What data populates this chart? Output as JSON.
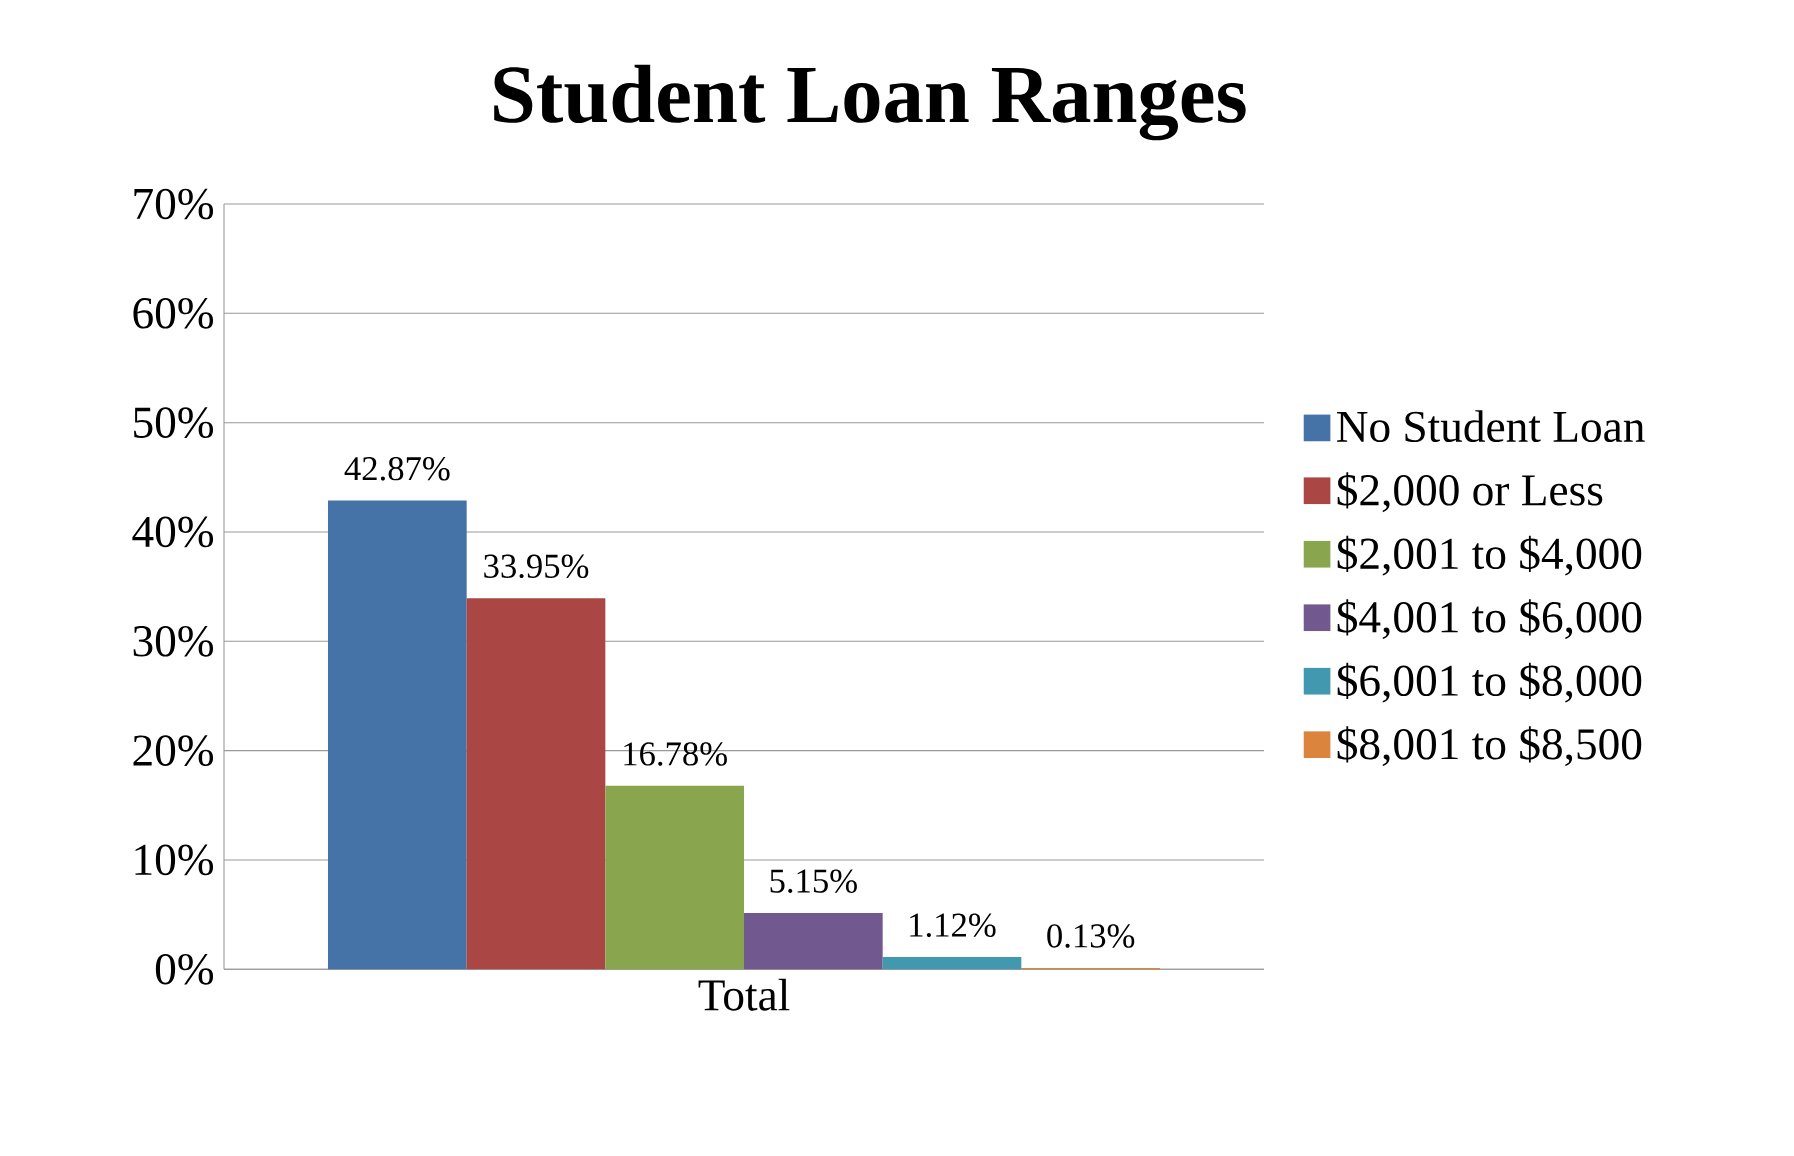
{
  "chart_data": {
    "type": "bar",
    "title": "Student Loan Ranges",
    "categories": [
      "Total"
    ],
    "series": [
      {
        "name": "No Student Loan",
        "color": "#4572a7",
        "values": [
          42.87
        ],
        "value_labels": [
          "42.87%"
        ]
      },
      {
        "name": "$2,000 or Less",
        "color": "#aa4643",
        "values": [
          33.95
        ],
        "value_labels": [
          "33.95%"
        ]
      },
      {
        "name": "$2,001 to $4,000",
        "color": "#89a54e",
        "values": [
          16.78
        ],
        "value_labels": [
          "16.78%"
        ]
      },
      {
        "name": "$4,001 to $6,000",
        "color": "#71588f",
        "values": [
          5.15
        ],
        "value_labels": [
          "5.15%"
        ]
      },
      {
        "name": "$6,001 to $8,000",
        "color": "#4198af",
        "values": [
          1.12
        ],
        "value_labels": [
          "1.12%"
        ]
      },
      {
        "name": "$8,001 to $8,500",
        "color": "#db843d",
        "values": [
          0.13
        ],
        "value_labels": [
          "0.13%"
        ]
      }
    ],
    "ylim": [
      0,
      70
    ],
    "yticks": [
      {
        "value": 0,
        "label": "0%"
      },
      {
        "value": 10,
        "label": "10%"
      },
      {
        "value": 20,
        "label": "20%"
      },
      {
        "value": 30,
        "label": "30%"
      },
      {
        "value": 40,
        "label": "40%"
      },
      {
        "value": 50,
        "label": "50%"
      },
      {
        "value": 60,
        "label": "60%"
      },
      {
        "value": 70,
        "label": "70%"
      }
    ],
    "grid": "y",
    "legend": "right"
  }
}
